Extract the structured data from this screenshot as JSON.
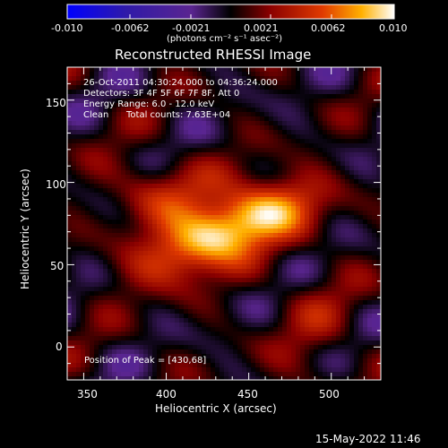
{
  "colorbar": {
    "ticks": [
      "-0.010",
      "-0.0062",
      "-0.0021",
      "0.0021",
      "0.0062",
      "0.010"
    ],
    "unit_label": "(photons cm⁻² s⁻¹ asec⁻²)",
    "range": [
      -0.01,
      0.01
    ]
  },
  "plot": {
    "title": "Reconstructed RHESSI Image",
    "xlabel": "Heliocentric X (arcsec)",
    "ylabel": "Heliocentric Y (arcsec)",
    "xticks": [
      "350",
      "400",
      "450",
      "500"
    ],
    "yticks": [
      "0",
      "50",
      "100",
      "150"
    ],
    "xlim": [
      340,
      530
    ],
    "ylim": [
      -20,
      170
    ]
  },
  "annotations": {
    "time_range": "26-Oct-2011 04:30:24.000 to 04:36:24.000",
    "detectors": "Detectors: 3F 4F 5F 6F 7F 8F, Att 0",
    "energy": "Energy Range: 6.0 - 12.0 keV",
    "method": "Clean",
    "counts": "Total counts: 7.63E+04",
    "peak": "Position of Peak = [430,68]"
  },
  "footer": {
    "timestamp": "15-May-2022 11:46"
  },
  "colors": {
    "background": "#000000",
    "foreground": "#ffffff",
    "colormap": [
      "#0000ff",
      "#2a0a55",
      "#5a1f8a",
      "#000000",
      "#8a0000",
      "#e03000",
      "#ff9000",
      "#ffffff"
    ]
  }
}
